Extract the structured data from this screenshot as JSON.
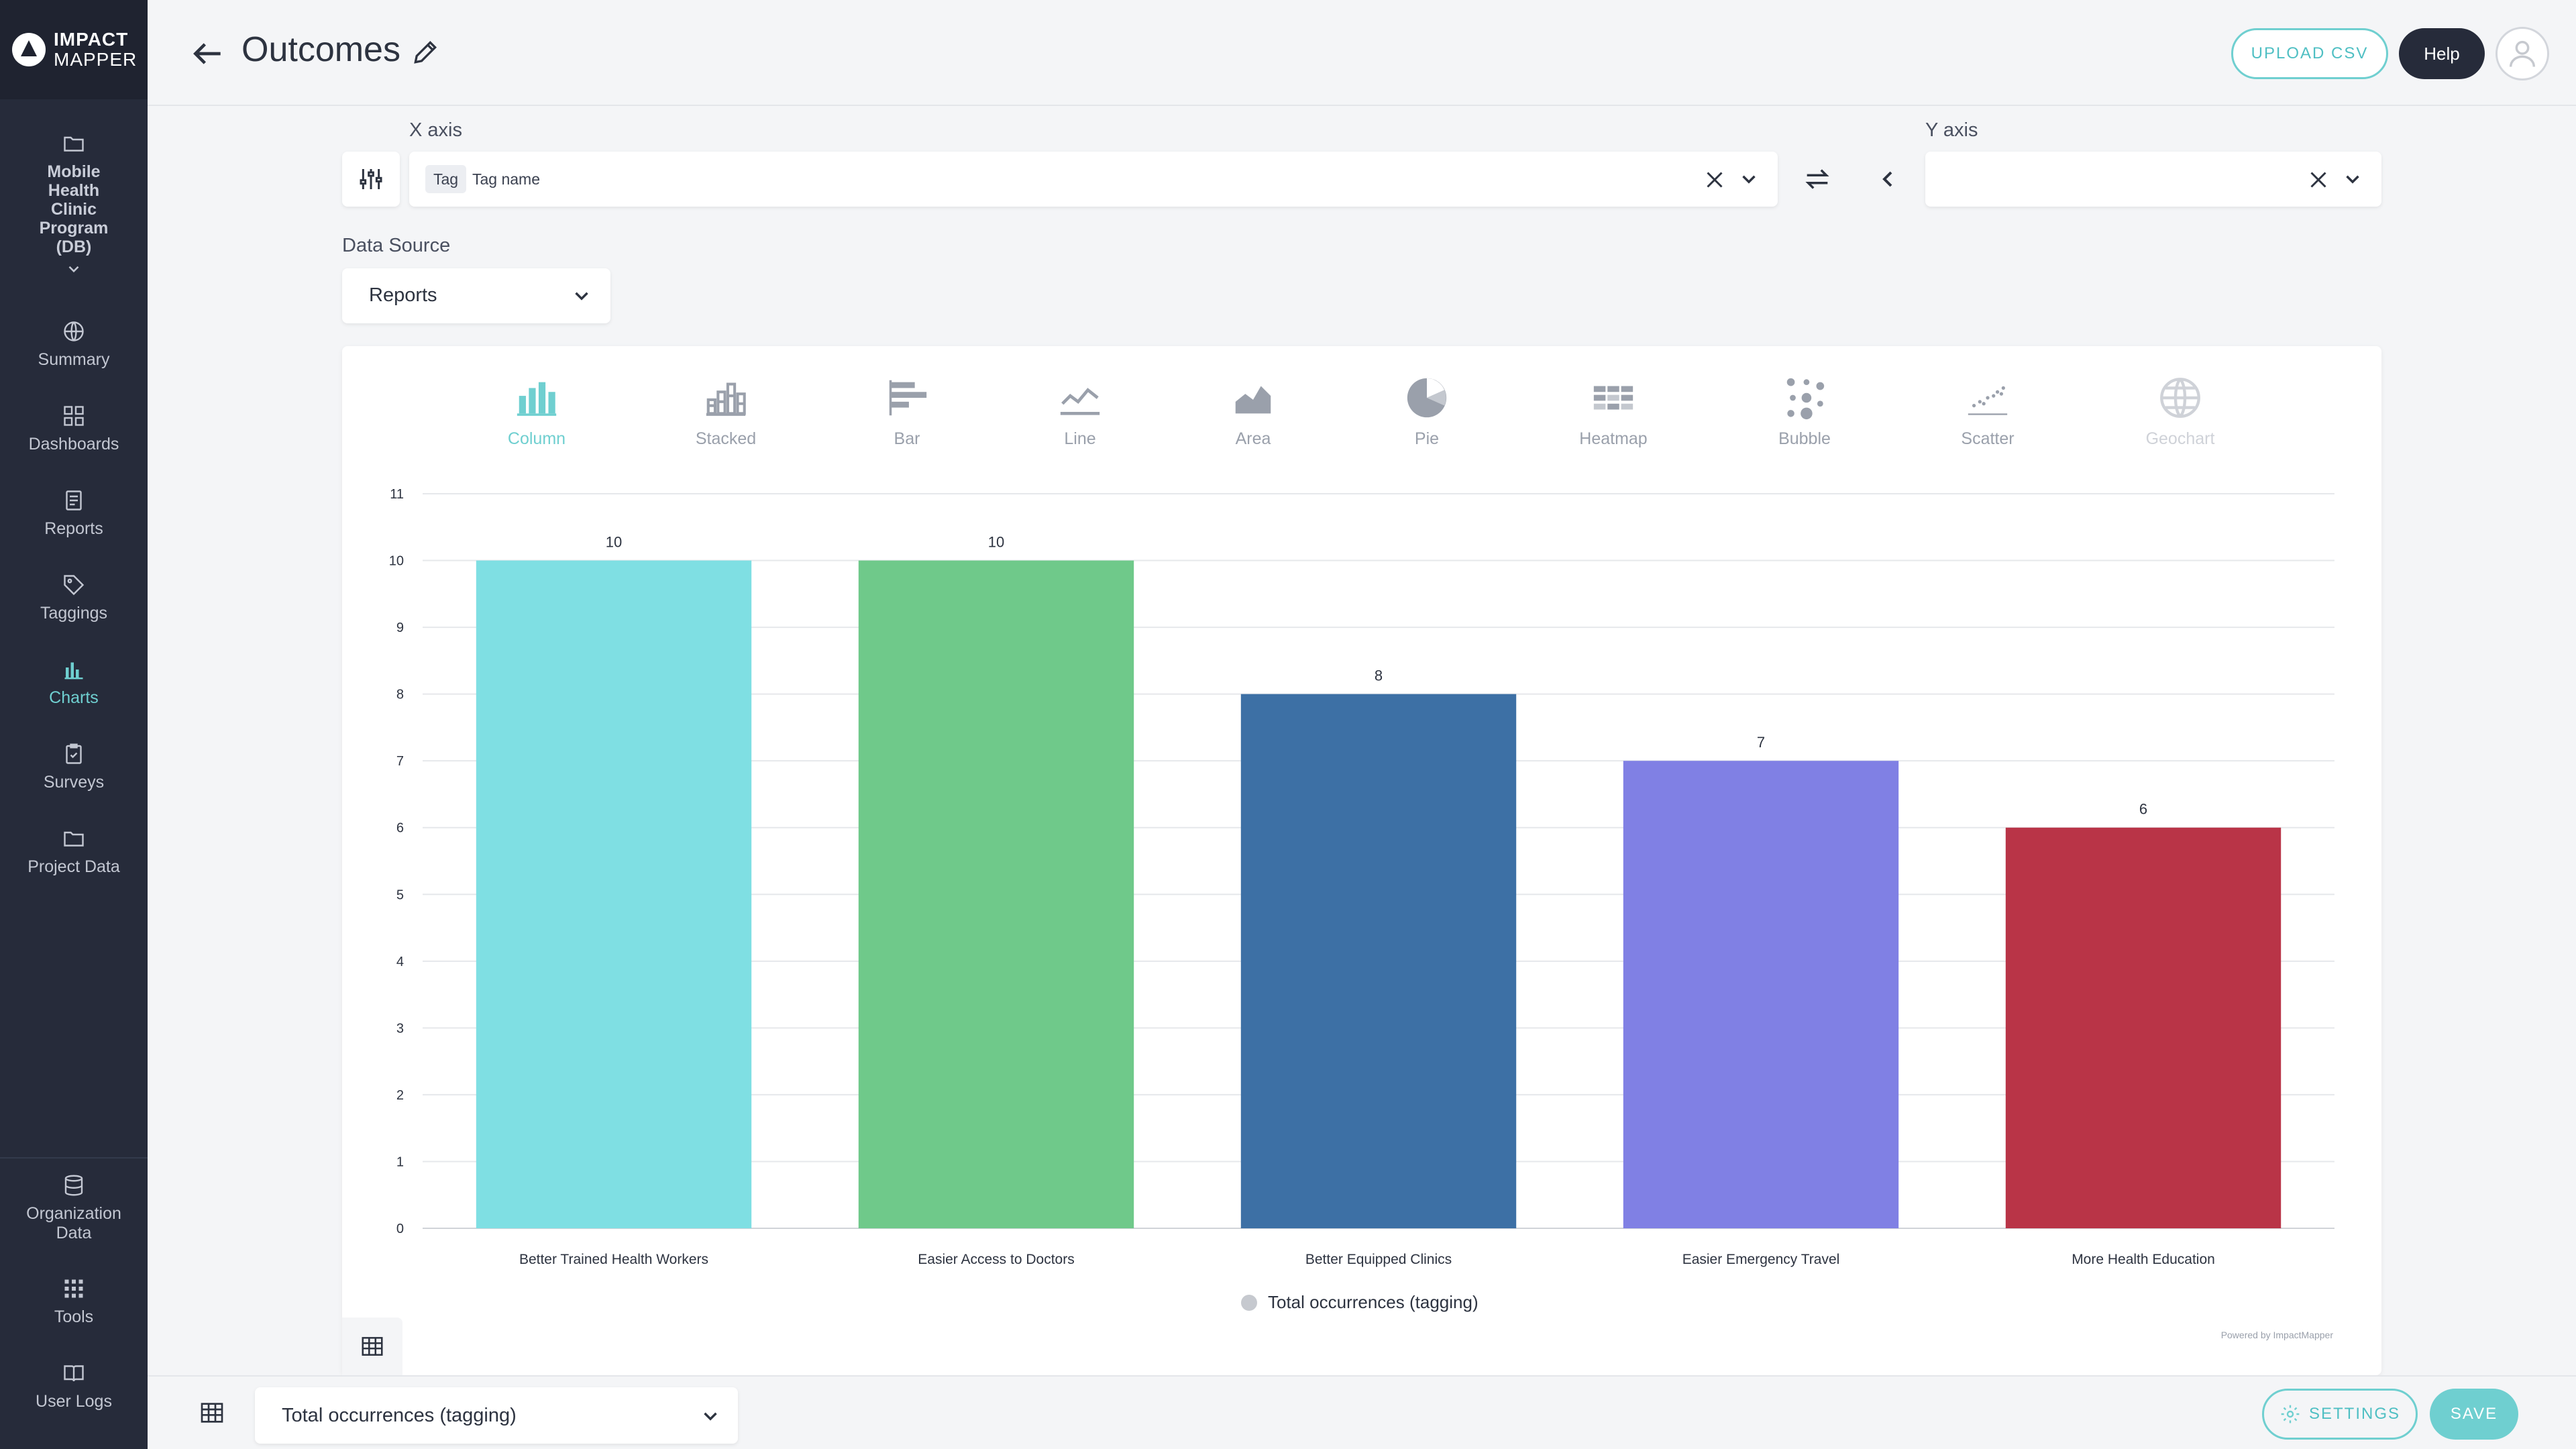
{
  "app": {
    "logo_line1": "IMPACT",
    "logo_line2": "MAPPER"
  },
  "sidebar": {
    "project_name": "Mobile Health Clinic Program (DB)",
    "items": [
      {
        "label": "Summary",
        "icon": "globe-icon"
      },
      {
        "label": "Dashboards",
        "icon": "grid-icon"
      },
      {
        "label": "Reports",
        "icon": "report-icon"
      },
      {
        "label": "Taggings",
        "icon": "tag-icon"
      },
      {
        "label": "Charts",
        "icon": "bar-chart-icon",
        "active": true
      },
      {
        "label": "Surveys",
        "icon": "clipboard-icon"
      },
      {
        "label": "Project Data",
        "icon": "folder-icon"
      }
    ],
    "bottom_items": [
      {
        "label": "Organization Data",
        "icon": "database-icon"
      },
      {
        "label": "Tools",
        "icon": "apps-icon"
      },
      {
        "label": "User Logs",
        "icon": "book-icon"
      }
    ]
  },
  "header": {
    "title": "Outcomes",
    "upload_label": "UPLOAD CSV",
    "help_label": "Help"
  },
  "axes": {
    "x_label": "X axis",
    "y_label": "Y axis",
    "x_tag_chip": "Tag",
    "x_value": "Tag name",
    "y_value": ""
  },
  "data_source": {
    "label": "Data Source",
    "value": "Reports"
  },
  "chart_types": [
    {
      "label": "Column",
      "state": "active"
    },
    {
      "label": "Stacked",
      "state": "normal"
    },
    {
      "label": "Bar",
      "state": "normal"
    },
    {
      "label": "Line",
      "state": "normal"
    },
    {
      "label": "Area",
      "state": "normal"
    },
    {
      "label": "Pie",
      "state": "normal"
    },
    {
      "label": "Heatmap",
      "state": "normal"
    },
    {
      "label": "Bubble",
      "state": "normal"
    },
    {
      "label": "Scatter",
      "state": "normal"
    },
    {
      "label": "Geochart",
      "state": "disabled"
    }
  ],
  "chart_data": {
    "type": "bar",
    "categories": [
      "Better Trained Health Workers",
      "Easier Access to Doctors",
      "Better Equipped Clinics",
      "Easier Emergency Travel",
      "More Health Education"
    ],
    "values": [
      10,
      10,
      8,
      7,
      6
    ],
    "colors": [
      "#7fdfe3",
      "#6fc98a",
      "#3d70a5",
      "#8080e4",
      "#b93447"
    ],
    "ylim": [
      0,
      11
    ],
    "yticks": [
      0,
      1,
      2,
      3,
      4,
      5,
      6,
      7,
      8,
      9,
      10,
      11
    ],
    "legend": "Total occurrences (tagging)",
    "legend_placement": "bottom-center",
    "grid": true,
    "credit": "Powered by ImpactMapper"
  },
  "footer": {
    "metric_value": "Total occurrences (tagging)",
    "settings_label": "SETTINGS",
    "save_label": "SAVE"
  },
  "colors": {
    "accent": "#6fcfd0",
    "sidebar": "#262b3a",
    "dark_button": "#262b3a"
  }
}
